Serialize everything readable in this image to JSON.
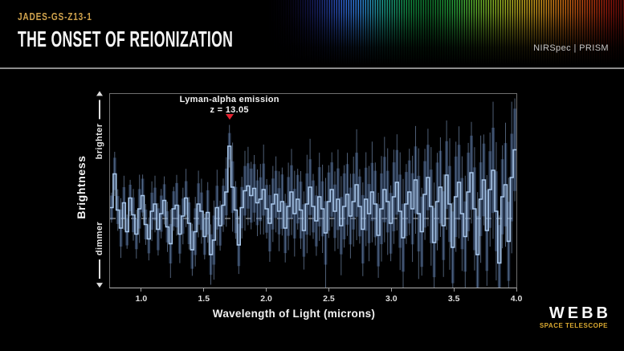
{
  "header": {
    "eyebrow": "JADES-GS-Z13-1",
    "title": "THE ONSET OF REIONIZATION",
    "instrument_label": "NIRSpec | PRISM"
  },
  "footer": {
    "logo_text": "WEBB",
    "logo_subtext": "SPACE TELESCOPE"
  },
  "chart_data": {
    "type": "line",
    "subtype": "stepped-spectrum-with-uncertainty-band",
    "title": "",
    "xlabel": "Wavelength of Light (microns)",
    "ylabel": "Brightness",
    "y_axis_top_label": "brighter",
    "y_axis_bottom_label": "dimmer",
    "grid": false,
    "legend": "none",
    "xlim": [
      0.75,
      4.0
    ],
    "ylim": [
      -2.87,
      5.17
    ],
    "baseline_value": 0,
    "x_ticks": [
      1.0,
      1.5,
      2.0,
      2.5,
      3.0,
      3.5,
      4.0
    ],
    "x_tick_labels": [
      "1.0",
      "1.5",
      "2.0",
      "2.5",
      "3.0",
      "3.5",
      "4.0"
    ],
    "annotation": {
      "label": "Lyman-alpha emission",
      "z_label": "z = 13.05",
      "x": 1.705,
      "marker": "down-triangle",
      "marker_color": "#e32330"
    },
    "x_start": 0.75,
    "bin_width": 0.0248,
    "flux": [
      0.45,
      1.85,
      0.35,
      -0.4,
      0.65,
      -0.55,
      0.85,
      0.15,
      -0.65,
      0.4,
      0.95,
      -0.25,
      -0.85,
      0.3,
      0.6,
      -0.45,
      0.2,
      0.75,
      -0.35,
      -1.05,
      0.4,
      0.55,
      -0.65,
      0.1,
      0.85,
      -0.2,
      -1.3,
      -0.55,
      0.6,
      0.3,
      -0.75,
      0.25,
      -1.5,
      -0.9,
      0.45,
      -0.3,
      0.55,
      1.1,
      3.0,
      1.3,
      0.35,
      -1.1,
      0.45,
      1.15,
      1.35,
      0.95,
      1.25,
      0.65,
      0.8,
      1.2,
      0.4,
      -0.2,
      0.6,
      1.0,
      0.3,
      0.7,
      -0.4,
      0.5,
      1.1,
      0.2,
      0.8,
      0.35,
      -0.5,
      0.6,
      1.3,
      0.5,
      -0.1,
      0.9,
      0.4,
      -0.6,
      0.7,
      1.2,
      0.3,
      0.8,
      -0.3,
      0.5,
      1.0,
      0.1,
      0.7,
      1.4,
      0.5,
      -0.45,
      0.8,
      0.2,
      1.1,
      0.6,
      -0.7,
      0.4,
      1.2,
      0.7,
      -0.2,
      0.9,
      1.5,
      0.3,
      -0.8,
      0.6,
      1.1,
      0.4,
      1.6,
      0.2,
      -0.55,
      1.0,
      1.7,
      0.5,
      -1.0,
      0.7,
      1.3,
      -0.3,
      1.8,
      0.6,
      -1.2,
      0.9,
      1.5,
      0.2,
      -0.75,
      1.1,
      1.9,
      0.4,
      -1.5,
      0.8,
      1.6,
      -0.5,
      1.2,
      2.0,
      0.3,
      -1.85,
      0.9,
      1.4,
      -0.95,
      1.7,
      2.85
    ],
    "err": [
      0.5,
      0.67,
      0.58,
      0.77,
      0.65,
      0.57,
      0.55,
      0.72,
      0.63,
      0.82,
      0.7,
      0.62,
      0.6,
      0.77,
      0.68,
      0.87,
      0.75,
      0.67,
      0.65,
      0.82,
      0.73,
      0.92,
      0.81,
      0.73,
      0.7,
      0.87,
      0.79,
      0.97,
      0.86,
      0.78,
      0.76,
      0.92,
      0.84,
      1.02,
      0.91,
      0.83,
      0.81,
      0.97,
      0.55,
      1.07,
      0.96,
      0.88,
      0.86,
      1.03,
      0.94,
      1.12,
      1.01,
      0.93,
      0.91,
      1.08,
      0.99,
      1.17,
      1.06,
      0.98,
      0.96,
      1.13,
      1.04,
      1.22,
      1.11,
      1.03,
      1.01,
      1.18,
      1.09,
      1.27,
      1.16,
      1.08,
      1.06,
      1.23,
      1.14,
      1.32,
      1.21,
      1.13,
      1.11,
      1.28,
      1.19,
      1.37,
      1.26,
      1.18,
      1.16,
      1.33,
      1.24,
      1.42,
      1.31,
      1.23,
      1.21,
      1.38,
      1.29,
      1.47,
      1.36,
      1.28,
      1.26,
      1.43,
      1.34,
      1.52,
      1.41,
      1.33,
      1.31,
      1.48,
      1.39,
      1.57,
      1.46,
      1.38,
      1.36,
      1.53,
      1.44,
      1.62,
      1.51,
      1.43,
      1.41,
      1.58,
      1.49,
      1.67,
      1.56,
      1.48,
      1.46,
      1.63,
      1.54,
      1.72,
      1.61,
      1.53,
      1.51,
      1.68,
      1.59,
      1.77,
      1.66,
      1.58,
      1.56,
      1.73,
      1.64,
      1.82,
      1.71
    ],
    "colors": {
      "line": "#a9c8ec",
      "band": "rgba(88,122,178,0.40)",
      "err_line": "rgba(142,172,214,0.55)",
      "baseline": "#d8d8d8"
    }
  }
}
